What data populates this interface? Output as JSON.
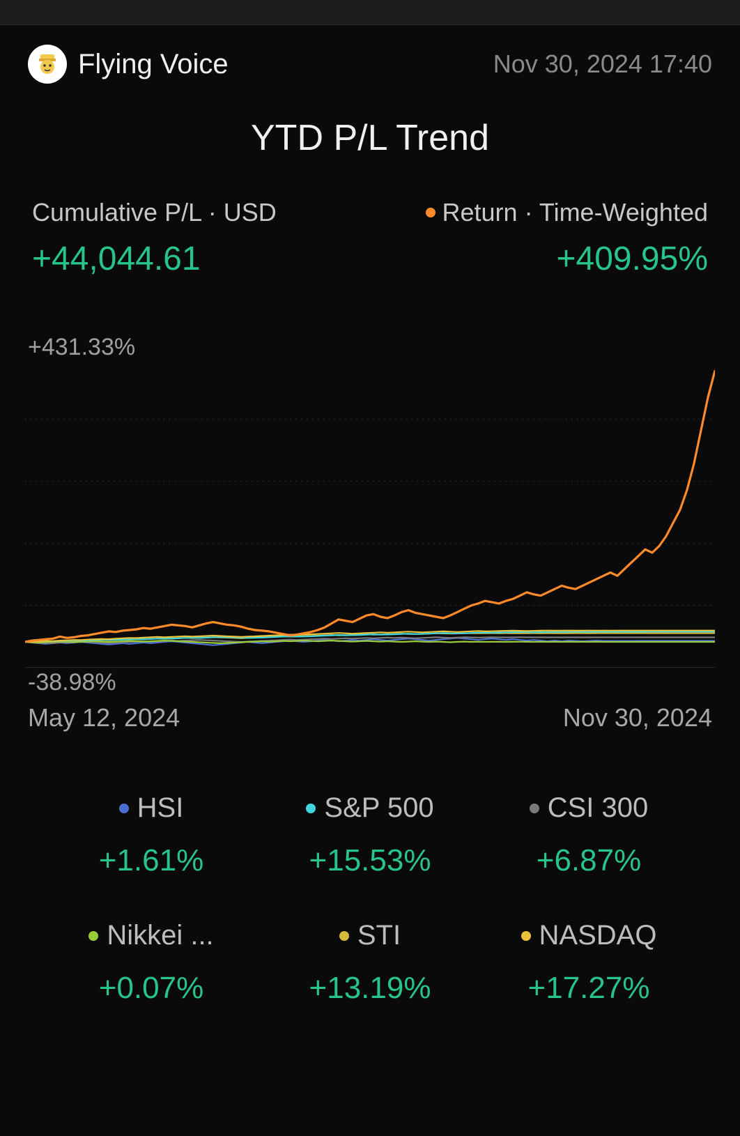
{
  "colors": {
    "background": "#0a0a0a",
    "text_primary": "#f0f0f0",
    "text_secondary": "#a0a0a0",
    "positive": "#27c58a",
    "grid": "#333333"
  },
  "header": {
    "username": "Flying Voice",
    "timestamp": "Nov 30, 2024 17:40"
  },
  "title": "YTD P/L Trend",
  "metrics": {
    "cumulative": {
      "label": "Cumulative P/L · USD",
      "value": "+44,044.61",
      "positive": true
    },
    "return": {
      "label": "Return · Time-Weighted",
      "value": "+409.95%",
      "positive": true,
      "dot_color": "#ff8a2a"
    }
  },
  "chart": {
    "y_top_label": "+431.33%",
    "y_bottom_label": "-38.98%",
    "x_start_label": "May 12, 2024",
    "x_end_label": "Nov 30, 2024",
    "ylim": [
      -38.98,
      431.33
    ],
    "grid_levels_pct": [
      0,
      20,
      40,
      60,
      80
    ],
    "baseline_level_pct": 8.29,
    "series": {
      "portfolio": {
        "color": "#ff8a2a",
        "width": 3.2,
        "values": [
          0,
          2,
          3,
          4,
          5,
          8,
          6,
          7,
          9,
          10,
          12,
          14,
          16,
          15,
          17,
          18,
          19,
          21,
          20,
          22,
          24,
          26,
          25,
          24,
          22,
          25,
          28,
          30,
          28,
          26,
          25,
          23,
          20,
          18,
          17,
          16,
          14,
          12,
          10,
          11,
          13,
          15,
          18,
          22,
          28,
          34,
          32,
          30,
          35,
          40,
          42,
          38,
          36,
          40,
          45,
          48,
          44,
          42,
          40,
          38,
          36,
          40,
          45,
          50,
          55,
          58,
          62,
          60,
          58,
          62,
          65,
          70,
          75,
          72,
          70,
          75,
          80,
          85,
          82,
          80,
          85,
          90,
          95,
          100,
          105,
          100,
          110,
          120,
          130,
          140,
          135,
          145,
          160,
          180,
          200,
          230,
          270,
          320,
          370,
          410
        ]
      },
      "sp500": {
        "color": "#3dd6e0",
        "width": 2.2,
        "values": [
          0,
          0.5,
          1,
          1.2,
          1,
          1.5,
          2,
          2.2,
          2,
          2.5,
          3,
          3.5,
          3,
          3.2,
          3.5,
          4,
          4.2,
          4,
          4.5,
          5,
          5.2,
          5,
          5.5,
          6,
          6.2,
          6,
          6.5,
          7,
          7.2,
          7,
          6.8,
          6.5,
          6,
          6.2,
          6.5,
          7,
          7.5,
          8,
          8.5,
          8,
          8.2,
          8.5,
          9,
          9.5,
          10,
          10.5,
          10,
          10.2,
          10.5,
          11,
          11.5,
          11,
          11.2,
          11.5,
          12,
          12.5,
          12,
          12.2,
          12.5,
          13,
          13.5,
          13,
          12.8,
          13,
          13.5,
          14,
          14.2,
          14,
          14.2,
          14.5,
          14.8,
          15,
          14.8,
          14.5,
          14.8,
          15,
          15.2,
          15,
          15.2,
          15.5,
          15.3,
          15.1,
          15.3,
          15.5,
          15.3,
          15.5,
          15.4,
          15.3,
          15.5,
          15.4,
          15.5,
          15.4,
          15.5,
          15.5,
          15.5,
          15.5,
          15.5,
          15.5,
          15.53,
          15.53
        ]
      },
      "nasdaq": {
        "color": "#e8c23a",
        "width": 2.2,
        "values": [
          0,
          0.5,
          1,
          1.5,
          1.2,
          2,
          2.5,
          3,
          2.8,
          3.5,
          4,
          4.5,
          4.2,
          5,
          5.5,
          6,
          5.8,
          6.5,
          7,
          7.5,
          7,
          7.5,
          8,
          8.5,
          8,
          8.5,
          9,
          9.5,
          9,
          8.5,
          8,
          7.5,
          8,
          8.5,
          9,
          9.5,
          10,
          10.5,
          11,
          10.5,
          11,
          11.5,
          12,
          12.5,
          13,
          13.5,
          13,
          12.5,
          13,
          13.5,
          14,
          14.5,
          14,
          14.5,
          15,
          15.5,
          15,
          14.5,
          15,
          15.5,
          16,
          15.5,
          15,
          15.5,
          16,
          16.5,
          16,
          16.2,
          16.5,
          16.8,
          17,
          16.8,
          16.5,
          16.8,
          17,
          17.2,
          17,
          17.1,
          17.2,
          17,
          17.1,
          17.2,
          17.1,
          17.2,
          17.1,
          17.2,
          17.2,
          17.2,
          17.2,
          17.27,
          17.27,
          17.27,
          17.27,
          17.27,
          17.27,
          17.27,
          17.27,
          17.27,
          17.27,
          17.27
        ]
      },
      "sti": {
        "color": "#d4b93a",
        "width": 2.2,
        "values": [
          0,
          0.3,
          0.8,
          1,
          0.8,
          1.2,
          1.5,
          2,
          1.8,
          2.2,
          2.5,
          3,
          2.8,
          3.2,
          3.5,
          4,
          3.8,
          4.2,
          4.5,
          5,
          4.8,
          5.2,
          5.5,
          6,
          5.8,
          6,
          6.5,
          7,
          6.8,
          6.5,
          6,
          5.5,
          6,
          6.5,
          7,
          7.5,
          8,
          8.5,
          8,
          8.2,
          8.5,
          9,
          9.5,
          10,
          10.5,
          10,
          10.2,
          10.5,
          11,
          11.5,
          11,
          11.2,
          11.5,
          12,
          12.5,
          12,
          11.8,
          12,
          12.5,
          13,
          12.8,
          12.5,
          12.8,
          13,
          13.1,
          13,
          13.1,
          13.2,
          13.1,
          13.2,
          13.1,
          13,
          13.1,
          13.2,
          13.1,
          13.2,
          13.15,
          13.1,
          13.15,
          13.2,
          13.18,
          13.15,
          13.18,
          13.2,
          13.19,
          13.19,
          13.19,
          13.19,
          13.19,
          13.19,
          13.19,
          13.19,
          13.19,
          13.19,
          13.19,
          13.19,
          13.19,
          13.19,
          13.19,
          13.19
        ]
      },
      "csi300": {
        "color": "#7a7a7a",
        "width": 2.2,
        "values": [
          0,
          -1,
          -2,
          -1.5,
          -2,
          -1,
          -0.5,
          0,
          0.5,
          0,
          -0.5,
          -1,
          -1.5,
          -1,
          -0.5,
          0,
          0.5,
          1,
          0.5,
          1,
          1.5,
          2,
          1.5,
          2,
          2.5,
          3,
          2.5,
          2,
          1.5,
          1,
          0.5,
          0,
          0.5,
          1,
          1.5,
          2,
          2.5,
          3,
          3.5,
          3,
          3.5,
          4,
          4.5,
          5,
          4.5,
          5,
          5.5,
          5,
          5.5,
          6,
          5.5,
          6,
          6.5,
          6,
          6.5,
          6,
          5.5,
          6,
          6.5,
          7,
          6.5,
          6,
          6.5,
          7,
          6.8,
          6.5,
          6.8,
          7,
          6.9,
          6.8,
          6.9,
          7,
          6.9,
          6.87,
          6.9,
          6.87,
          6.9,
          6.87,
          6.87,
          6.87,
          6.87,
          6.87,
          6.87,
          6.87,
          6.87,
          6.87,
          6.87,
          6.87,
          6.87,
          6.87,
          6.87,
          6.87,
          6.87,
          6.87,
          6.87,
          6.87,
          6.87,
          6.87,
          6.87,
          6.87
        ]
      },
      "hsi": {
        "color": "#4a6fd4",
        "width": 2.2,
        "values": [
          0,
          -1,
          -2,
          -3,
          -2,
          -1,
          -2,
          -1,
          0,
          -1,
          -2,
          -3,
          -4,
          -3,
          -2,
          -3,
          -2,
          -1,
          -2,
          -1,
          0,
          1,
          0,
          -1,
          -2,
          -3,
          -4,
          -5,
          -4,
          -3,
          -2,
          -1,
          0,
          -1,
          -2,
          -1,
          0,
          1,
          2,
          1,
          0,
          1,
          2,
          3,
          2,
          1,
          2,
          3,
          2,
          3,
          4,
          3,
          2,
          3,
          4,
          5,
          4,
          3,
          2,
          3,
          4,
          5,
          6,
          5,
          4,
          3,
          4,
          5,
          4,
          3,
          4,
          3,
          2,
          3,
          2,
          1,
          2,
          1,
          2,
          1.5,
          1,
          1.5,
          2,
          1.5,
          1.6,
          1.5,
          1.6,
          1.5,
          1.6,
          1.61,
          1.61,
          1.61,
          1.61,
          1.61,
          1.61,
          1.61,
          1.61,
          1.61,
          1.61,
          1.61
        ]
      },
      "nikkei": {
        "color": "#9acc3a",
        "width": 2.2,
        "values": [
          0,
          -0.5,
          -1,
          -0.5,
          0,
          0.5,
          0,
          -0.5,
          0,
          0.5,
          1,
          0.5,
          0,
          0.5,
          1,
          1.5,
          1,
          0.5,
          1,
          1.5,
          2,
          1.5,
          1,
          0.5,
          0,
          -0.5,
          -1,
          -1.5,
          -2,
          -1.5,
          -1,
          -0.5,
          0,
          0.5,
          1,
          0.5,
          1,
          1.5,
          1,
          1.5,
          2,
          1.5,
          1,
          1.5,
          2,
          1.5,
          1,
          0.5,
          1,
          1.5,
          1,
          0.5,
          1,
          0.5,
          0,
          0.5,
          1,
          0.5,
          0,
          0.5,
          0,
          -0.5,
          0,
          0.5,
          0,
          0.2,
          0,
          0.2,
          0.1,
          0,
          0.1,
          0.2,
          0.1,
          0,
          0.1,
          0,
          0.1,
          0,
          0.1,
          0.07,
          0.1,
          0.07,
          0.1,
          0.07,
          0.07,
          0.07,
          0.07,
          0.07,
          0.07,
          0.07,
          0.07,
          0.07,
          0.07,
          0.07,
          0.07,
          0.07,
          0.07,
          0.07,
          0.07,
          0.07
        ]
      }
    }
  },
  "benchmarks": [
    {
      "name": "HSI",
      "value": "+1.61%",
      "positive": true,
      "dot_color": "#4a6fd4"
    },
    {
      "name": "S&P 500",
      "value": "+15.53%",
      "positive": true,
      "dot_color": "#3dd6e0"
    },
    {
      "name": "CSI 300",
      "value": "+6.87%",
      "positive": true,
      "dot_color": "#7a7a7a"
    },
    {
      "name": "Nikkei ...",
      "value": "+0.07%",
      "positive": true,
      "dot_color": "#9acc3a"
    },
    {
      "name": "STI",
      "value": "+13.19%",
      "positive": true,
      "dot_color": "#d4b93a"
    },
    {
      "name": "NASDAQ",
      "value": "+17.27%",
      "positive": true,
      "dot_color": "#e8c23a"
    }
  ]
}
